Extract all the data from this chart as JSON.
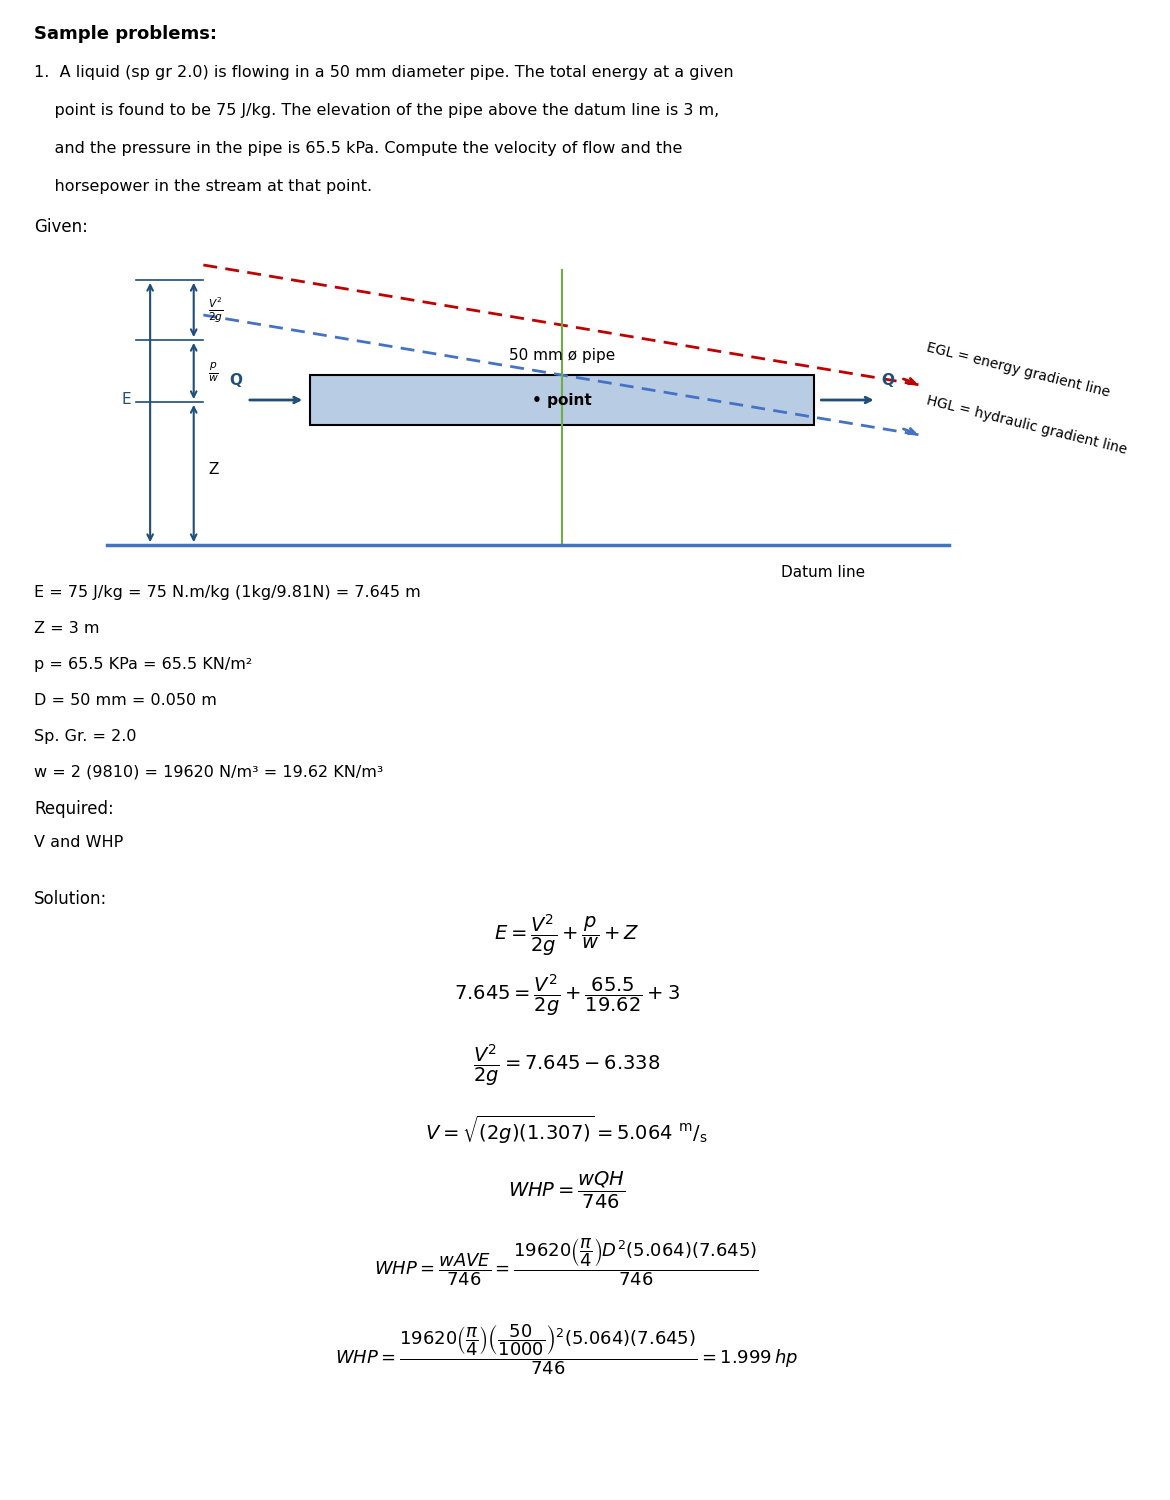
{
  "title": "Sample problems:",
  "problem_text": "1.  A liquid (sp gr 2.0) is flowing in a 50 mm diameter pipe. The total energy at a given\n    point is found to be 75 J/kg. The elevation of the pipe above the datum line is 3 m,\n    and the pressure in the pipe is 65.5 kPa. Compute the velocity of flow and the\n    horsepower in the stream at that point.",
  "given_label": "Given:",
  "required_label": "Required:",
  "required_text": "V and WHP",
  "solution_label": "Solution:",
  "given_data": [
    "E = 75 J/kg = 75 N.m/kg (1kg/9.81N) = 7.645 m",
    "Z = 3 m",
    "p = 65.5 KPa = 65.5 KN/m²",
    "D = 50 mm = 0.050 m",
    "Sp. Gr. = 2.0",
    "w = 2 (9810) = 19620 N/m³ = 19.62 KN/m³"
  ],
  "bg_color": "#ffffff",
  "text_color": "#000000",
  "pipe_fill_color": "#b8cce4",
  "pipe_border_color": "#000000",
  "arrow_color": "#1f4e79",
  "egl_color": "#c00000",
  "hgl_color": "#4472c4",
  "datum_color": "#4472c4",
  "vertical_line_color": "#70ad47"
}
